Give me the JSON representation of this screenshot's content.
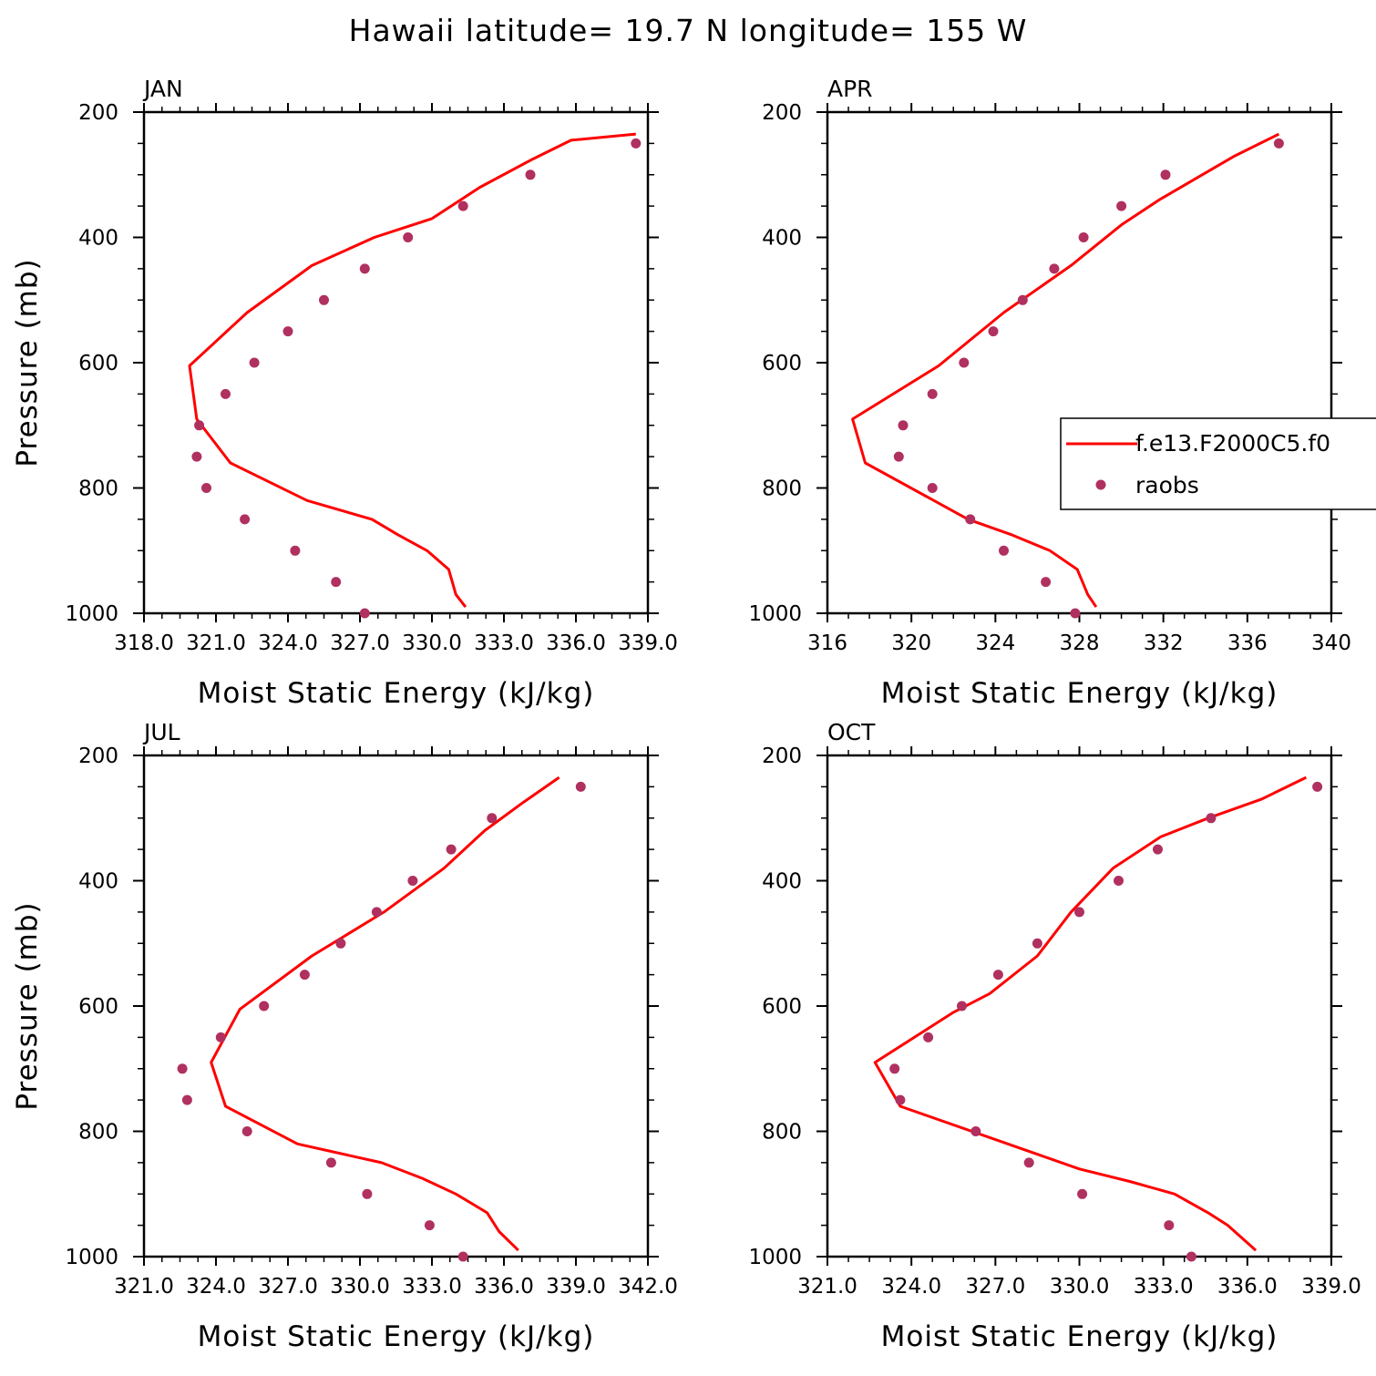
{
  "title": "Hawaii  latitude= 19.7 N longitude= 155 W",
  "colors": {
    "model": "#ff0000",
    "obs": "#b03060",
    "axes": "#000000",
    "background": "#ffffff"
  },
  "legend": {
    "placement": "right-middle of APR panel",
    "entries": [
      {
        "label": "f.e13.F2000C5.f0",
        "marker": "line",
        "color": "#ff0000"
      },
      {
        "label": "raobs",
        "marker": "dot",
        "color": "#b03060"
      }
    ]
  },
  "chart_data": [
    {
      "type": "line",
      "title": "JAN",
      "xlabel": "Moist Static Energy (kJ/kg)",
      "ylabel": "Pressure (mb)",
      "xlim": [
        318.0,
        339.0
      ],
      "ylim": [
        1000,
        200
      ],
      "xticks": [
        {
          "value": 318.0,
          "label": "318.0"
        },
        {
          "value": 321.0,
          "label": "321.0"
        },
        {
          "value": 324.0,
          "label": "324.0"
        },
        {
          "value": 327.0,
          "label": "327.0"
        },
        {
          "value": 330.0,
          "label": "330.0"
        },
        {
          "value": 333.0,
          "label": "333.0"
        },
        {
          "value": 336.0,
          "label": "336.0"
        },
        {
          "value": 339.0,
          "label": "339.0"
        }
      ],
      "yticks": [
        200,
        400,
        600,
        800,
        1000
      ],
      "series": [
        {
          "name": "f.e13.F2000C5.f0",
          "style": "line",
          "x": [
            331.4,
            331.0,
            330.7,
            329.8,
            328.6,
            327.5,
            324.8,
            321.6,
            320.2,
            319.9,
            322.3,
            325.0,
            327.6,
            330.0,
            332.0,
            334.2,
            335.8,
            338.5
          ],
          "y": [
            990,
            970,
            930,
            900,
            875,
            850,
            820,
            760,
            690,
            605,
            520,
            445,
            400,
            370,
            320,
            275,
            245,
            235
          ]
        },
        {
          "name": "raobs",
          "style": "points",
          "x": [
            327.2,
            326.0,
            324.3,
            322.2,
            320.6,
            320.2,
            320.3,
            321.4,
            322.6,
            324.0,
            325.5,
            327.2,
            329.0,
            331.3,
            334.1,
            338.5
          ],
          "y": [
            1000,
            950,
            900,
            850,
            800,
            750,
            700,
            650,
            600,
            550,
            500,
            450,
            400,
            350,
            300,
            250
          ]
        }
      ]
    },
    {
      "type": "line",
      "title": "APR",
      "xlabel": "Moist Static Energy (kJ/kg)",
      "ylabel": "",
      "xlim": [
        316,
        340
      ],
      "ylim": [
        1000,
        200
      ],
      "xticks": [
        {
          "value": 316,
          "label": "316"
        },
        {
          "value": 320,
          "label": "320"
        },
        {
          "value": 324,
          "label": "324"
        },
        {
          "value": 328,
          "label": "328"
        },
        {
          "value": 332,
          "label": "332"
        },
        {
          "value": 336,
          "label": "336"
        },
        {
          "value": 340,
          "label": "340"
        }
      ],
      "yticks": [
        200,
        400,
        600,
        800,
        1000
      ],
      "series": [
        {
          "name": "f.e13.F2000C5.f0",
          "style": "line",
          "x": [
            328.8,
            328.4,
            327.9,
            326.6,
            324.8,
            322.7,
            317.8,
            317.2,
            321.3,
            324.4,
            327.6,
            330.0,
            331.8,
            333.6,
            335.4,
            337.5
          ],
          "y": [
            990,
            970,
            930,
            900,
            875,
            850,
            760,
            690,
            605,
            520,
            445,
            380,
            340,
            305,
            270,
            235
          ]
        },
        {
          "name": "raobs",
          "style": "points",
          "x": [
            327.8,
            326.4,
            324.4,
            322.8,
            321.0,
            319.4,
            319.6,
            321.0,
            322.5,
            323.9,
            325.3,
            326.8,
            328.2,
            330.0,
            332.1,
            337.5
          ],
          "y": [
            1000,
            950,
            900,
            850,
            800,
            750,
            700,
            650,
            600,
            550,
            500,
            450,
            400,
            350,
            300,
            250
          ]
        }
      ]
    },
    {
      "type": "line",
      "title": "JUL",
      "xlabel": "Moist Static Energy (kJ/kg)",
      "ylabel": "Pressure (mb)",
      "xlim": [
        321.0,
        342.0
      ],
      "ylim": [
        1000,
        200
      ],
      "xticks": [
        {
          "value": 321.0,
          "label": "321.0"
        },
        {
          "value": 324.0,
          "label": "324.0"
        },
        {
          "value": 327.0,
          "label": "327.0"
        },
        {
          "value": 330.0,
          "label": "330.0"
        },
        {
          "value": 333.0,
          "label": "333.0"
        },
        {
          "value": 336.0,
          "label": "336.0"
        },
        {
          "value": 339.0,
          "label": "339.0"
        },
        {
          "value": 342.0,
          "label": "342.0"
        }
      ],
      "yticks": [
        200,
        400,
        600,
        800,
        1000
      ],
      "series": [
        {
          "name": "f.e13.F2000C5.f0",
          "style": "line",
          "x": [
            336.6,
            335.8,
            335.3,
            334.0,
            332.6,
            330.9,
            327.4,
            324.4,
            323.8,
            325.0,
            328.0,
            331.0,
            333.5,
            335.2,
            336.8,
            338.3
          ],
          "y": [
            990,
            960,
            930,
            900,
            875,
            850,
            820,
            760,
            690,
            605,
            520,
            450,
            380,
            320,
            275,
            235
          ]
        },
        {
          "name": "raobs",
          "style": "points",
          "x": [
            334.3,
            332.9,
            330.3,
            328.8,
            325.3,
            322.8,
            322.6,
            324.2,
            326.0,
            327.7,
            329.2,
            330.7,
            332.2,
            333.8,
            335.5,
            339.2
          ],
          "y": [
            1000,
            950,
            900,
            850,
            800,
            750,
            700,
            650,
            600,
            550,
            500,
            450,
            400,
            350,
            300,
            250
          ]
        }
      ]
    },
    {
      "type": "line",
      "title": "OCT",
      "xlabel": "Moist Static Energy (kJ/kg)",
      "ylabel": "",
      "xlim": [
        321.0,
        339.0
      ],
      "ylim": [
        1000,
        200
      ],
      "xticks": [
        {
          "value": 321.0,
          "label": "321.0"
        },
        {
          "value": 324.0,
          "label": "324.0"
        },
        {
          "value": 327.0,
          "label": "327.0"
        },
        {
          "value": 330.0,
          "label": "330.0"
        },
        {
          "value": 333.0,
          "label": "333.0"
        },
        {
          "value": 336.0,
          "label": "336.0"
        },
        {
          "value": 339.0,
          "label": "339.0"
        }
      ],
      "yticks": [
        200,
        400,
        600,
        800,
        1000
      ],
      "series": [
        {
          "name": "f.e13.F2000C5.f0",
          "style": "line",
          "x": [
            336.3,
            335.3,
            334.6,
            333.4,
            331.8,
            330.0,
            323.6,
            322.7,
            325.5,
            326.8,
            328.5,
            329.7,
            331.2,
            332.9,
            334.6,
            336.5,
            338.1
          ],
          "y": [
            990,
            950,
            930,
            900,
            880,
            860,
            760,
            690,
            610,
            580,
            520,
            450,
            380,
            330,
            300,
            270,
            235
          ]
        },
        {
          "name": "raobs",
          "style": "points",
          "x": [
            334.0,
            333.2,
            330.1,
            328.2,
            326.3,
            323.6,
            323.4,
            324.6,
            325.8,
            327.1,
            328.5,
            330.0,
            331.4,
            332.8,
            334.7,
            338.5
          ],
          "y": [
            1000,
            950,
            900,
            850,
            800,
            750,
            700,
            650,
            600,
            550,
            500,
            450,
            400,
            350,
            300,
            250
          ]
        }
      ]
    }
  ]
}
